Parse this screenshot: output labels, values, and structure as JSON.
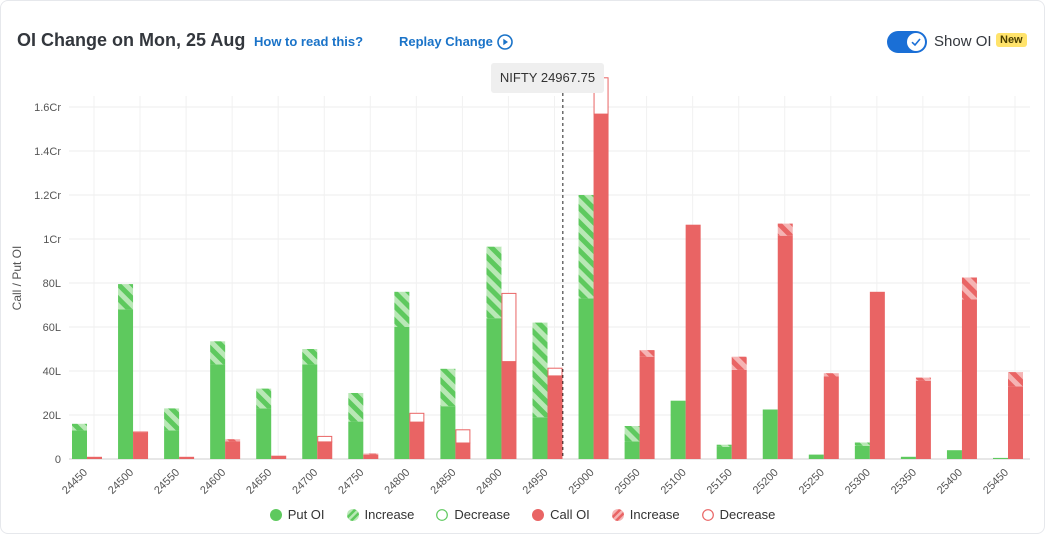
{
  "header": {
    "title": "OI Change on Mon, 25 Aug",
    "how_to_read": "How to read this?",
    "replay": "Replay Change",
    "show_oi": "Show OI",
    "badge": "New"
  },
  "tooltip": {
    "label": "NIFTY 24967.75"
  },
  "colors": {
    "put": "#5ec95e",
    "put_light": "#b9e8b6",
    "call": "#e96464",
    "call_light": "#f5b4b4",
    "accent": "#1a73c8",
    "toggle": "#1a6fd6"
  },
  "legend": {
    "put_oi": "Put OI",
    "put_increase": "Increase",
    "put_decrease": "Decrease",
    "call_oi": "Call OI",
    "call_increase": "Increase",
    "call_decrease": "Decrease"
  },
  "chart_data": {
    "type": "bar",
    "ylabel": "Call / Put OI",
    "ylim": [
      0,
      16500000
    ],
    "yticks": [
      {
        "value": 0,
        "label": "0"
      },
      {
        "value": 2000000,
        "label": "20L"
      },
      {
        "value": 4000000,
        "label": "40L"
      },
      {
        "value": 6000000,
        "label": "60L"
      },
      {
        "value": 8000000,
        "label": "80L"
      },
      {
        "value": 10000000,
        "label": "1Cr"
      },
      {
        "value": 12000000,
        "label": "1.2Cr"
      },
      {
        "value": 14000000,
        "label": "1.4Cr"
      },
      {
        "value": 16000000,
        "label": "1.6Cr"
      }
    ],
    "grid": true,
    "spot": 24967.75,
    "legend_position": "bottom",
    "categories": [
      "24450",
      "24500",
      "24550",
      "24600",
      "24650",
      "24700",
      "24750",
      "24800",
      "24850",
      "24900",
      "24950",
      "25000",
      "25050",
      "25100",
      "25150",
      "25200",
      "25250",
      "25300",
      "25350",
      "25400",
      "25450"
    ],
    "series": [
      {
        "name": "Put OI",
        "current": [
          1600000,
          7950000,
          2300000,
          5350000,
          3200000,
          5000000,
          3000000,
          7600000,
          4100000,
          9650000,
          6200000,
          12000000,
          1500000,
          2650000,
          650000,
          2250000,
          200000,
          750000,
          100000,
          400000,
          50000
        ],
        "previous": [
          1300000,
          6800000,
          1300000,
          4300000,
          2300000,
          4300000,
          1700000,
          6000000,
          2400000,
          6400000,
          1900000,
          7300000,
          800000,
          2650000,
          550000,
          2250000,
          200000,
          600000,
          100000,
          400000,
          50000
        ]
      },
      {
        "name": "Call OI",
        "current": [
          100000,
          1200000,
          100000,
          900000,
          150000,
          800000,
          250000,
          1700000,
          750000,
          4450000,
          3800000,
          15700000,
          4950000,
          10650000,
          4650000,
          10700000,
          3900000,
          7600000,
          3700000,
          8250000,
          3950000
        ],
        "previous": [
          100000,
          1250000,
          100000,
          800000,
          150000,
          1050000,
          200000,
          2100000,
          1350000,
          7550000,
          4150000,
          17350000,
          4650000,
          10650000,
          4050000,
          10150000,
          3750000,
          7600000,
          3550000,
          7250000,
          3300000
        ]
      }
    ]
  }
}
